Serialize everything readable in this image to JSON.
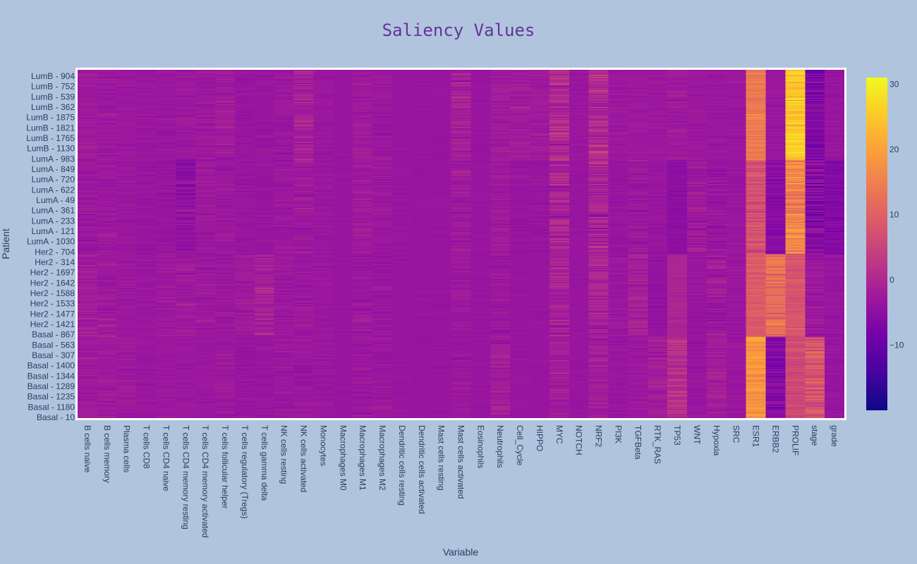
{
  "chart_data": {
    "type": "heatmap",
    "title": "Saliency Values",
    "xlabel": "Variable",
    "ylabel": "Patient",
    "x": [
      "B cells naive",
      "B cells memory",
      "Plasma cells",
      "T cells CD8",
      "T cells CD4 naive",
      "T cells CD4 memory resting",
      "T cells CD4 memory activated",
      "T cells follicular helper",
      "T cells regulatory (Tregs)",
      "T cells gamma delta",
      "NK cells resting",
      "NK cells activated",
      "Monocytes",
      "Macrophages M0",
      "Macrophages M1",
      "Macrophages M2",
      "Dendritic cells resting",
      "Dendritic cells activated",
      "Mast cells resting",
      "Mast cells activated",
      "Eosinophils",
      "Neutrophils",
      "Cell_Cycle",
      "HIPPO",
      "MYC",
      "NOTCH",
      "NRF2",
      "PI3K",
      "TGFBeta",
      "RTK_RAS",
      "TP53",
      "WNT",
      "Hypoxia",
      "SRC",
      "ESR1",
      "ERBB2",
      "PROLIF",
      "stage",
      "grade"
    ],
    "y_tick_labels": [
      "LumB - 904",
      "LumB - 752",
      "LumB - 539",
      "LumB - 362",
      "LumB - 1875",
      "LumB - 1821",
      "LumB - 1765",
      "LumB - 1130",
      "LumA - 983",
      "LumA - 849",
      "LumA - 720",
      "LumA - 622",
      "LumA - 49",
      "LumA - 361",
      "LumA - 233",
      "LumA - 121",
      "LumA - 1030",
      "Her2 - 704",
      "Her2 - 314",
      "Her2 - 1697",
      "Her2 - 1642",
      "Her2 - 1588",
      "Her2 - 1533",
      "Her2 - 1477",
      "Her2 - 1421",
      "Basal - 867",
      "Basal - 563",
      "Basal - 307",
      "Basal - 1400",
      "Basal - 1344",
      "Basal - 1289",
      "Basal - 1235",
      "Basal - 1180",
      "Basal - 10"
    ],
    "groups": [
      "LumB",
      "LumA",
      "Her2",
      "Basal"
    ],
    "group_rows": [
      140,
      146,
      128,
      126
    ],
    "group_means": {
      "LumB": [
        -2.5,
        -2.8,
        -3,
        -3.2,
        -3.2,
        -3,
        -2.8,
        -2.2,
        -3.5,
        -3.5,
        -3,
        -1.5,
        -3.2,
        -3.5,
        -2.5,
        -3,
        -3.5,
        -3.5,
        -3.5,
        -1.5,
        -3.5,
        -2.5,
        -2.2,
        -2.5,
        0.2,
        -3.2,
        0.5,
        -3,
        -2.8,
        -3,
        -2.5,
        -3,
        -3.2,
        -3.2,
        14,
        -3.2,
        25,
        -7,
        -3.5
      ],
      "LumA": [
        -3,
        -3,
        -3.2,
        -3.5,
        -3.5,
        -4.5,
        -2.8,
        -3,
        -3.5,
        -3.5,
        -3,
        -2.5,
        -3.2,
        -3.5,
        -2.5,
        -3,
        -3.5,
        -3.5,
        -3.5,
        -2.5,
        -3.5,
        -2.5,
        -3.5,
        -3.5,
        -0.5,
        -3.5,
        -1,
        -3.5,
        -3,
        -3.5,
        -5,
        -2.5,
        -3.5,
        -3.2,
        7,
        -5.5,
        16,
        -6,
        -6.5
      ],
      "Her2": [
        -2,
        -2.5,
        -3,
        -3.2,
        -2.8,
        -2.5,
        -2.8,
        -3,
        -2.5,
        -1.5,
        -3,
        -3,
        -3.2,
        -3.5,
        -3,
        -3.2,
        -3.5,
        -3.5,
        -3.5,
        -3,
        -3.5,
        -3,
        -3.5,
        -3.5,
        -1,
        -3.5,
        -1,
        -3,
        -1.5,
        -4,
        -0.5,
        -3.5,
        -2.5,
        -3.2,
        9,
        12,
        8,
        -3,
        -3.5
      ],
      "Basal": [
        -2.5,
        -2.5,
        -2.5,
        -3.2,
        -3,
        -3,
        -3,
        -2.8,
        -3.5,
        -3.5,
        -3,
        -3,
        -3.2,
        -3.5,
        -3,
        -3.2,
        -3.5,
        -3.5,
        -3.5,
        -3,
        -3.5,
        -2,
        -3.5,
        -3.5,
        -2,
        -3.5,
        -2,
        -3.5,
        -3,
        -2,
        1,
        -3.5,
        -2,
        -3.2,
        18,
        -6,
        6,
        8,
        -3.5
      ]
    },
    "group_spread": {
      "LumB": [
        1.5,
        1.5,
        1,
        1,
        1,
        1.5,
        1.5,
        2,
        1,
        1,
        1.5,
        3,
        1,
        0.5,
        1.5,
        1.5,
        0.5,
        0.5,
        0.5,
        3,
        0.5,
        1.5,
        2,
        1.5,
        4,
        1,
        4,
        1,
        1,
        1,
        1.5,
        1,
        1,
        1,
        2.5,
        1,
        4,
        4,
        1
      ],
      "LumA": [
        1.5,
        1.5,
        1,
        1,
        1,
        3,
        1.5,
        1.5,
        1,
        1,
        1.5,
        2,
        1,
        0.5,
        1.5,
        1.5,
        0.5,
        0.5,
        0.5,
        2,
        0.5,
        1.5,
        1,
        1,
        4,
        0.5,
        4,
        1,
        2,
        1,
        1,
        2.5,
        2,
        1,
        3,
        2,
        5,
        5,
        2
      ],
      "Her2": [
        2,
        2,
        1,
        1,
        1.5,
        2,
        1.5,
        1.5,
        1.5,
        3,
        1.5,
        1.5,
        1,
        0.5,
        2,
        1.5,
        0.5,
        0.5,
        0.5,
        1.5,
        0.5,
        1.5,
        0.5,
        0.5,
        3,
        0.5,
        3,
        1.5,
        2,
        1,
        1,
        1,
        3,
        1,
        2,
        4,
        2.5,
        2,
        1
      ],
      "Basal": [
        1.5,
        1.5,
        1.5,
        1,
        1,
        1,
        1,
        1.5,
        1,
        1,
        1.5,
        1.5,
        1,
        0.5,
        1.5,
        1.5,
        0.5,
        0.5,
        0.5,
        1.5,
        0.5,
        2.5,
        0.5,
        0.5,
        2,
        0.5,
        2,
        1,
        1,
        2.5,
        3,
        1,
        2,
        1,
        3,
        3,
        2,
        4,
        1
      ]
    },
    "color_scale": {
      "name": "Plasma",
      "zmin": -20,
      "zmax": 31,
      "stops": [
        "#0d0887",
        "#46039f",
        "#7201a8",
        "#9c179e",
        "#bd3786",
        "#d8576b",
        "#ed7953",
        "#fb9f3a",
        "#fdca26",
        "#f0f921"
      ]
    },
    "colorbar_ticks": [
      "30",
      "20",
      "10",
      "0",
      "−10"
    ],
    "colorbar_tick_values": [
      30,
      20,
      10,
      0,
      -10
    ],
    "colors": {
      "background": "#b0c4de",
      "title": "#663399",
      "text": "#2a3f5f",
      "frame": "#ffffff"
    }
  }
}
